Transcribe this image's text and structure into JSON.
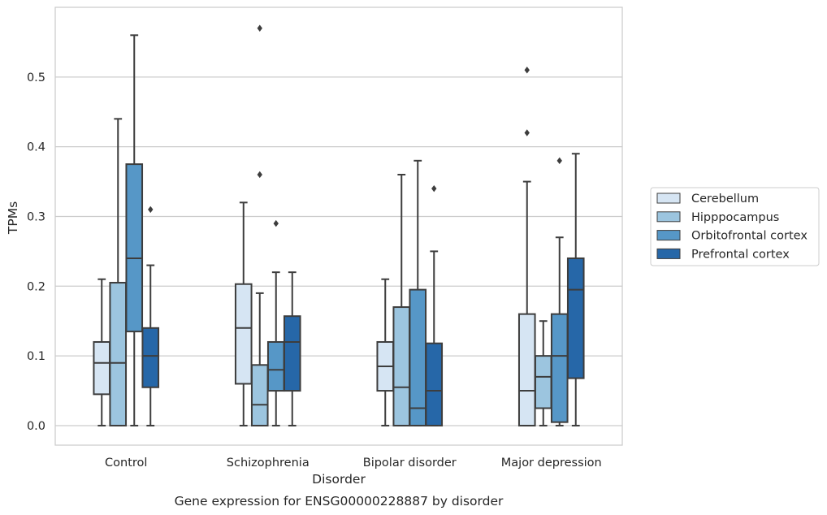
{
  "chart_data": {
    "type": "box",
    "title": "Gene expression for ENSG00000228887 by disorder",
    "xlabel": "Disorder",
    "ylabel": "TPMs",
    "ylim": [
      -0.028,
      0.6
    ],
    "yticks": [
      0.0,
      0.1,
      0.2,
      0.3,
      0.4,
      0.5
    ],
    "ytick_labels": [
      "0.0",
      "0.1",
      "0.2",
      "0.3",
      "0.4",
      "0.5"
    ],
    "grid": "horizontal",
    "legend_position": "right",
    "categories": [
      "Control",
      "Schizophrenia",
      "Bipolar disorder",
      "Major depression"
    ],
    "series": [
      {
        "name": "Cerebellum",
        "color": "#d6e5f3",
        "boxes": [
          {
            "whisker_low": 0.0,
            "q1": 0.045,
            "median": 0.09,
            "q3": 0.12,
            "whisker_high": 0.21,
            "outliers": []
          },
          {
            "whisker_low": 0.0,
            "q1": 0.06,
            "median": 0.14,
            "q3": 0.203,
            "whisker_high": 0.32,
            "outliers": []
          },
          {
            "whisker_low": 0.0,
            "q1": 0.05,
            "median": 0.085,
            "q3": 0.12,
            "whisker_high": 0.21,
            "outliers": []
          },
          {
            "whisker_low": 0.0,
            "q1": 0.0,
            "median": 0.05,
            "q3": 0.16,
            "whisker_high": 0.35,
            "outliers": [
              0.42,
              0.51
            ]
          }
        ]
      },
      {
        "name": "Hipppocampus",
        "color": "#9cc5df",
        "boxes": [
          {
            "whisker_low": 0.0,
            "q1": 0.0,
            "median": 0.09,
            "q3": 0.205,
            "whisker_high": 0.44,
            "outliers": []
          },
          {
            "whisker_low": 0.0,
            "q1": 0.0,
            "median": 0.03,
            "q3": 0.087,
            "whisker_high": 0.19,
            "outliers": [
              0.36,
              0.57
            ]
          },
          {
            "whisker_low": 0.0,
            "q1": 0.0,
            "median": 0.055,
            "q3": 0.17,
            "whisker_high": 0.36,
            "outliers": []
          },
          {
            "whisker_low": 0.0,
            "q1": 0.025,
            "median": 0.07,
            "q3": 0.1,
            "whisker_high": 0.15,
            "outliers": []
          }
        ]
      },
      {
        "name": "Orbitofrontal cortex",
        "color": "#5697c7",
        "boxes": [
          {
            "whisker_low": 0.0,
            "q1": 0.135,
            "median": 0.24,
            "q3": 0.375,
            "whisker_high": 0.56,
            "outliers": []
          },
          {
            "whisker_low": 0.0,
            "q1": 0.05,
            "median": 0.08,
            "q3": 0.12,
            "whisker_high": 0.22,
            "outliers": [
              0.29
            ]
          },
          {
            "whisker_low": 0.0,
            "q1": 0.0,
            "median": 0.025,
            "q3": 0.195,
            "whisker_high": 0.38,
            "outliers": []
          },
          {
            "whisker_low": 0.0,
            "q1": 0.005,
            "median": 0.1,
            "q3": 0.16,
            "whisker_high": 0.27,
            "outliers": [
              0.38
            ]
          }
        ]
      },
      {
        "name": "Prefrontal cortex",
        "color": "#2667a8",
        "boxes": [
          {
            "whisker_low": 0.0,
            "q1": 0.055,
            "median": 0.1,
            "q3": 0.14,
            "whisker_high": 0.23,
            "outliers": [
              0.31
            ]
          },
          {
            "whisker_low": 0.0,
            "q1": 0.05,
            "median": 0.12,
            "q3": 0.157,
            "whisker_high": 0.22,
            "outliers": []
          },
          {
            "whisker_low": 0.0,
            "q1": 0.0,
            "median": 0.05,
            "q3": 0.118,
            "whisker_high": 0.25,
            "outliers": [
              0.34
            ]
          },
          {
            "whisker_low": 0.0,
            "q1": 0.068,
            "median": 0.195,
            "q3": 0.24,
            "whisker_high": 0.39,
            "outliers": []
          }
        ]
      }
    ]
  }
}
